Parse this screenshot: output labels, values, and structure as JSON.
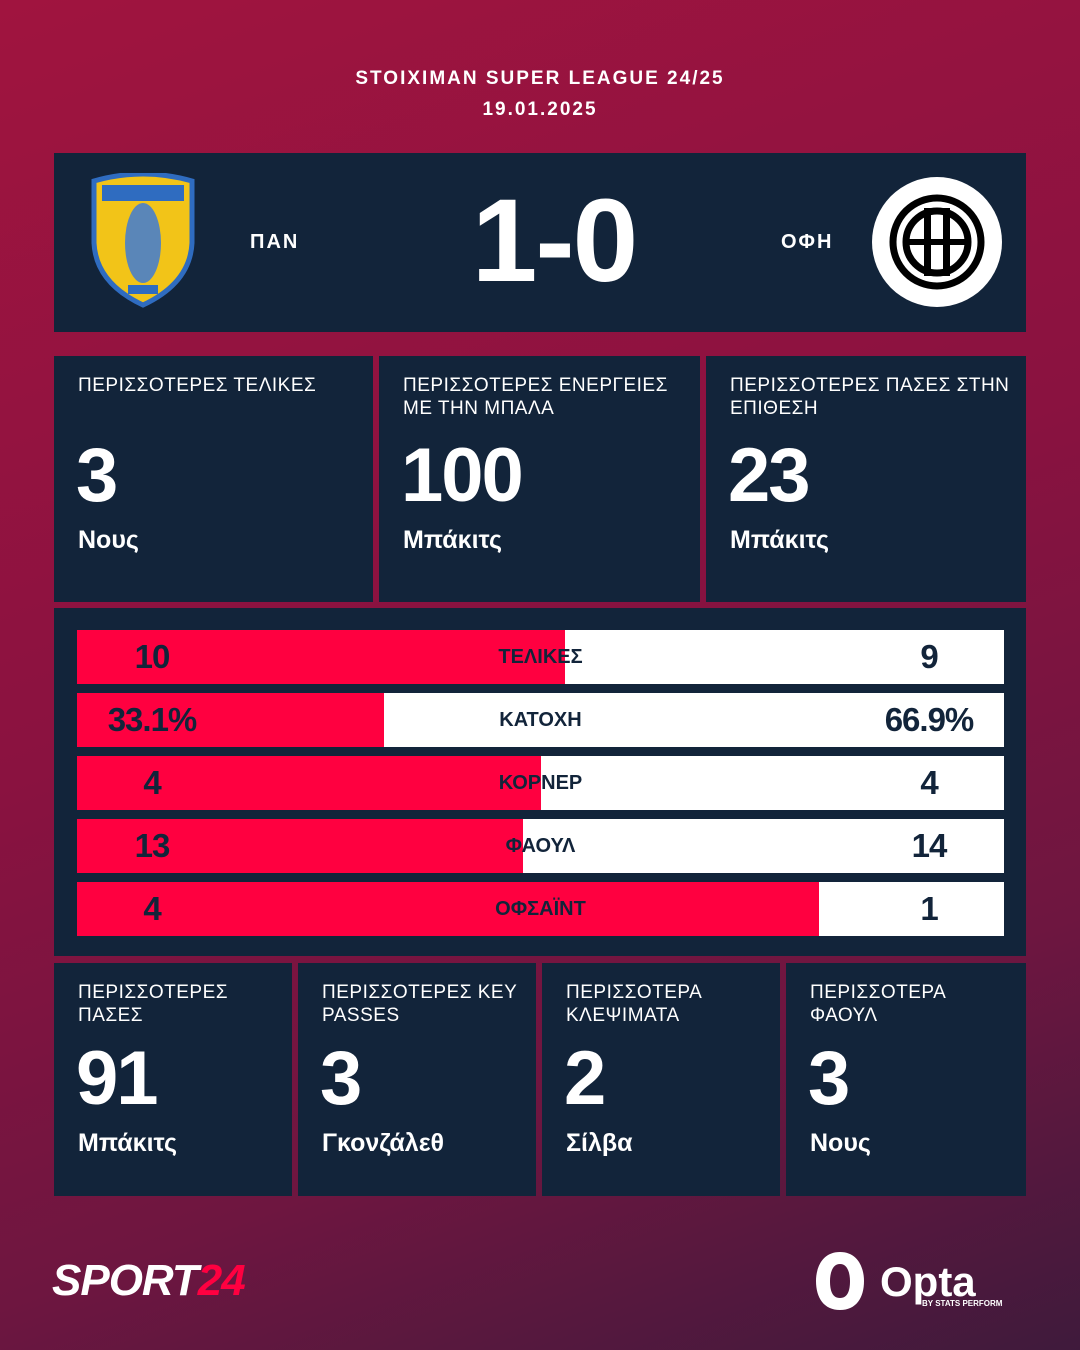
{
  "header": {
    "league": "STOIXIMAN SUPER LEAGUE 24/25",
    "date": "19.01.2025"
  },
  "match": {
    "home": "ΠΑΝ",
    "score": "1-0",
    "away": "ΟΦΗ"
  },
  "top_cards": [
    {
      "label": "ΠΕΡΙΣΣΟΤΕΡΕΣ ΤΕΛΙΚΕΣ",
      "value": 3,
      "player": "Νους"
    },
    {
      "label": "ΠΕΡΙΣΣΟΤΕΡΕΣ ΕΝΕΡΓΕΙΕΣ ΜΕ ΤΗΝ ΜΠΑΛΑ",
      "value": 100,
      "player": "Μπάκιτς"
    },
    {
      "label": "ΠΕΡΙΣΣΟΤΕΡΕΣ ΠΑΣΕΣ ΣΤΗΝ ΕΠΙΘΕΣΗ",
      "value": 23,
      "player": "Μπάκιτς"
    }
  ],
  "stats": {
    "rows": [
      {
        "label": "ΤΕΛΙΚΕΣ",
        "home": 10,
        "away": 9
      },
      {
        "label": "ΚΑΤΟΧΗ",
        "home": 33.1,
        "away": 66.9,
        "home_label": "33.1%",
        "away_label": "66.9%"
      },
      {
        "label": "ΚΟΡΝΕΡ",
        "home": 4,
        "away": 4
      },
      {
        "label": "ΦΑΟΥΛ",
        "home": 13,
        "away": 14
      },
      {
        "label": "ΟΦΣΑΪΝΤ",
        "home": 4,
        "away": 1
      }
    ]
  },
  "bottom_cards": [
    {
      "label": "ΠΕΡΙΣΣΟΤΕΡΕΣ ΠΑΣΕΣ",
      "value": 91,
      "player": "Μπάκιτς"
    },
    {
      "label": "ΠΕΡΙΣΣΟΤΕΡΕΣ KEY PASSES",
      "value": 3,
      "player": "Γκονζάλεθ"
    },
    {
      "label": "ΠΕΡΙΣΣΟΤΕΡΑ ΚΛΕΨΙΜΑΤΑ",
      "value": 2,
      "player": "Σίλβα"
    },
    {
      "label": "ΠΕΡΙΣΣΟΤΕΡΑ ΦΑΟΥΛ",
      "value": 3,
      "player": "Νους"
    }
  ],
  "footer": {
    "brand_main": "SPORT",
    "brand_accent": "24",
    "opta": "Opta",
    "opta_sub": "BY STATS PERFORM"
  }
}
